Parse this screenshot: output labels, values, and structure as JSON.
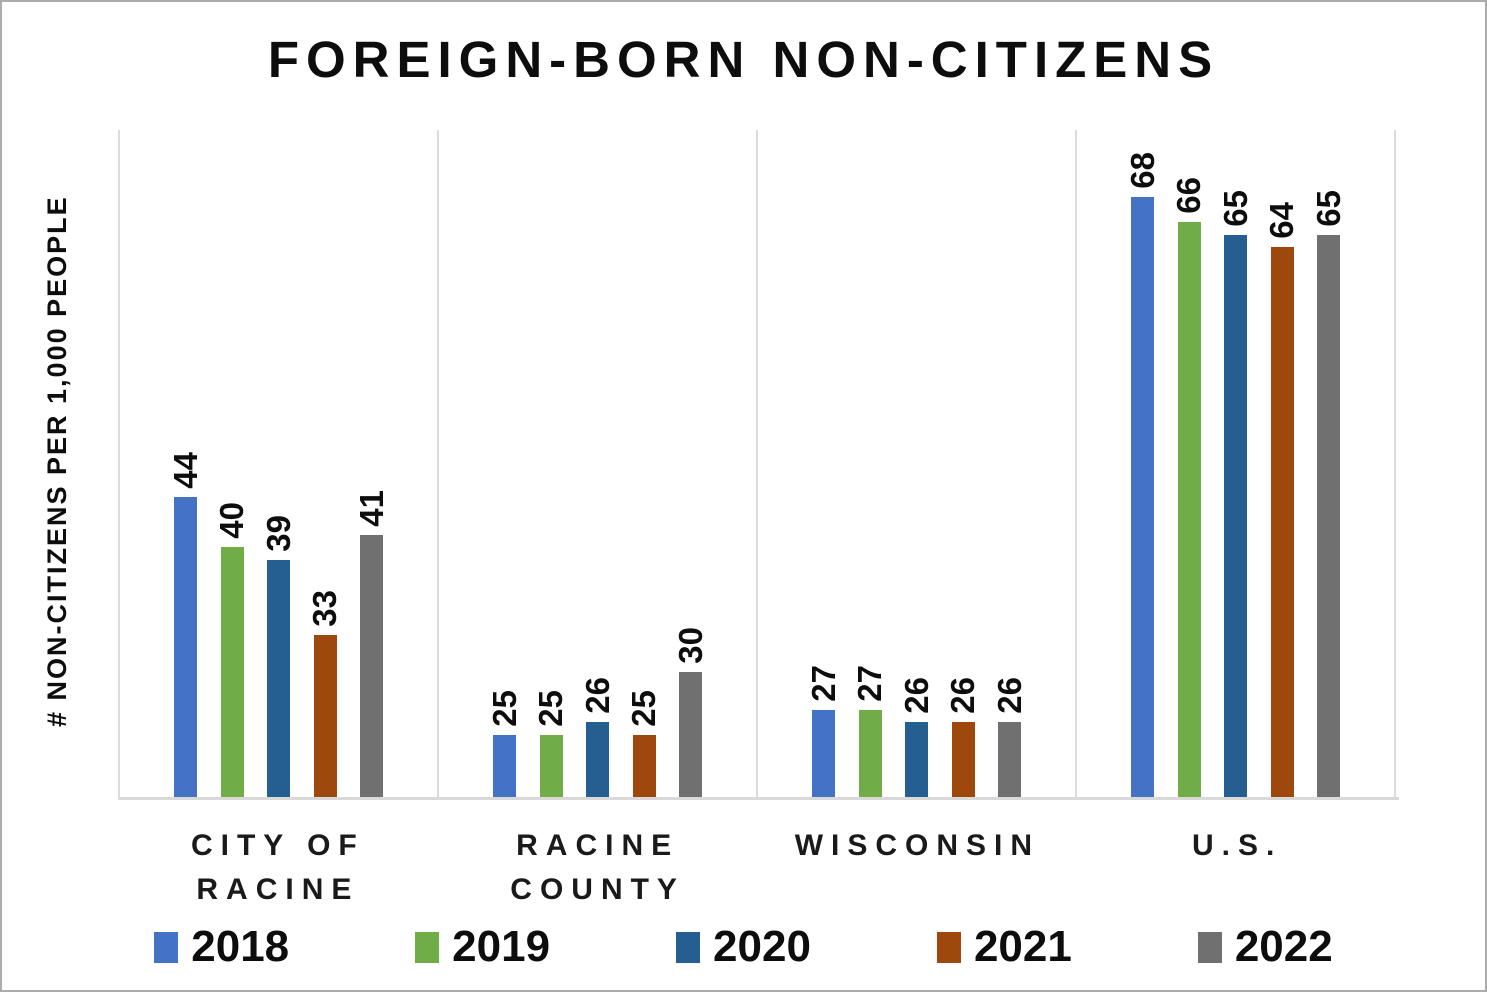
{
  "chart_data": {
    "type": "bar",
    "title": "FOREIGN-BORN NON-CITIZENS",
    "ylabel": "# NON-CITIZENS PER 1,000 PEOPLE",
    "xlabel": "",
    "categories": [
      "CITY OF\nRACINE",
      "RACINE\nCOUNTY",
      "WISCONSIN",
      "U.S."
    ],
    "series": [
      {
        "name": "2018",
        "color": "#4472C4",
        "values": [
          44,
          25,
          27,
          68
        ]
      },
      {
        "name": "2019",
        "color": "#70AD47",
        "values": [
          40,
          25,
          27,
          66
        ]
      },
      {
        "name": "2020",
        "color": "#255E91",
        "values": [
          39,
          26,
          26,
          65
        ]
      },
      {
        "name": "2021",
        "color": "#9E480E",
        "values": [
          33,
          25,
          26,
          64
        ]
      },
      {
        "name": "2022",
        "color": "#707070",
        "values": [
          41,
          30,
          26,
          65
        ]
      }
    ],
    "axis": {
      "y_min": 20,
      "y_max": 73.4,
      "y_tick_labels_visible": false,
      "vertical_category_gridlines": true
    },
    "value_labels": {
      "rotation": "vertical-bottom-to-top",
      "position": "above-bar"
    },
    "legend_position": "bottom"
  },
  "style_colors": {
    "gridline": "#dcdcdc",
    "axis_line": "#d9d9d9",
    "outer_border": "#acacac",
    "text": "#0d0d0d",
    "background": "#ffffff"
  }
}
